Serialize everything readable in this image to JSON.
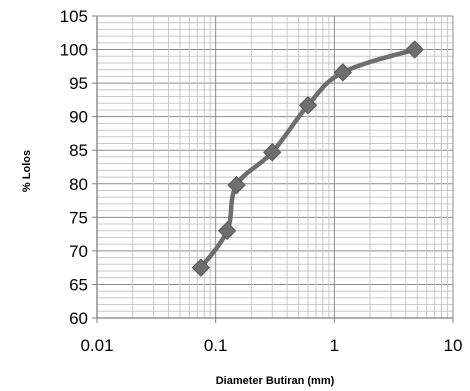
{
  "chart_data": {
    "type": "scatter",
    "title": "",
    "xlabel": "Diameter Butiran  (mm)",
    "ylabel": "% Lolos",
    "xscale": "log",
    "xlim": [
      0.01,
      10
    ],
    "ylim": [
      60,
      105
    ],
    "xticks": [
      0.01,
      0.1,
      1,
      10
    ],
    "xtick_labels": [
      "0.01",
      "0.1",
      "1",
      "10"
    ],
    "yticks": [
      60,
      65,
      70,
      75,
      80,
      85,
      90,
      95,
      100,
      105
    ],
    "ytick_labels": [
      "60",
      "65",
      "70",
      "75",
      "80",
      "85",
      "90",
      "95",
      "100",
      "105"
    ],
    "grid": "major and minor",
    "legend": "none",
    "series": [
      {
        "marker": "diamond",
        "line": "smooth",
        "color": "#6e6e6e",
        "x": [
          0.075,
          0.125,
          0.15,
          0.3,
          0.6,
          1.18,
          4.75
        ],
        "y": [
          67.5,
          73.0,
          79.8,
          84.7,
          91.7,
          96.6,
          100.0
        ]
      }
    ]
  }
}
